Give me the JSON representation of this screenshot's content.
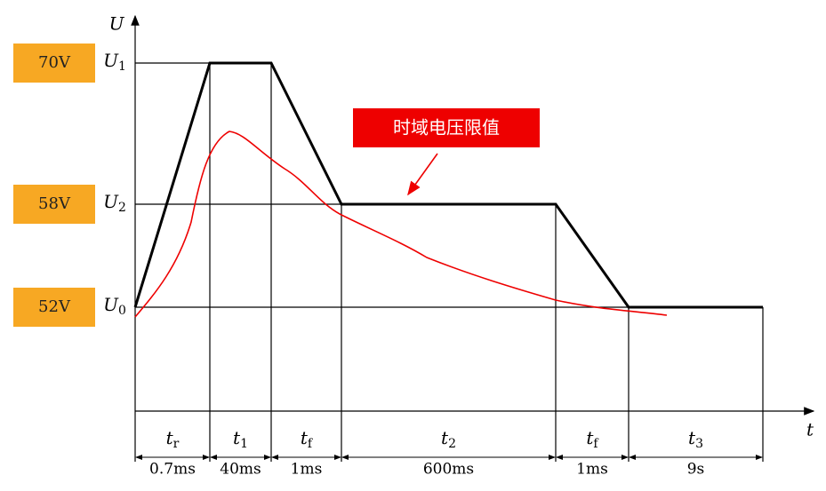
{
  "axes": {
    "y_label": "U",
    "x_label": "t"
  },
  "levels": [
    {
      "badge": "70V",
      "symbol": "U",
      "sub": "1"
    },
    {
      "badge": "58V",
      "symbol": "U",
      "sub": "2"
    },
    {
      "badge": "52V",
      "symbol": "U",
      "sub": "0"
    }
  ],
  "annotation": "时域电压限值",
  "segments": [
    {
      "symbol": "t",
      "sub": "r",
      "duration": "0.7ms"
    },
    {
      "symbol": "t",
      "sub": "1",
      "duration": "40ms"
    },
    {
      "symbol": "t",
      "sub": "f",
      "duration": "1ms"
    },
    {
      "symbol": "t",
      "sub": "2",
      "duration": "600ms"
    },
    {
      "symbol": "t",
      "sub": "f",
      "duration": "1ms"
    },
    {
      "symbol": "t",
      "sub": "3",
      "duration": "9s"
    }
  ]
}
